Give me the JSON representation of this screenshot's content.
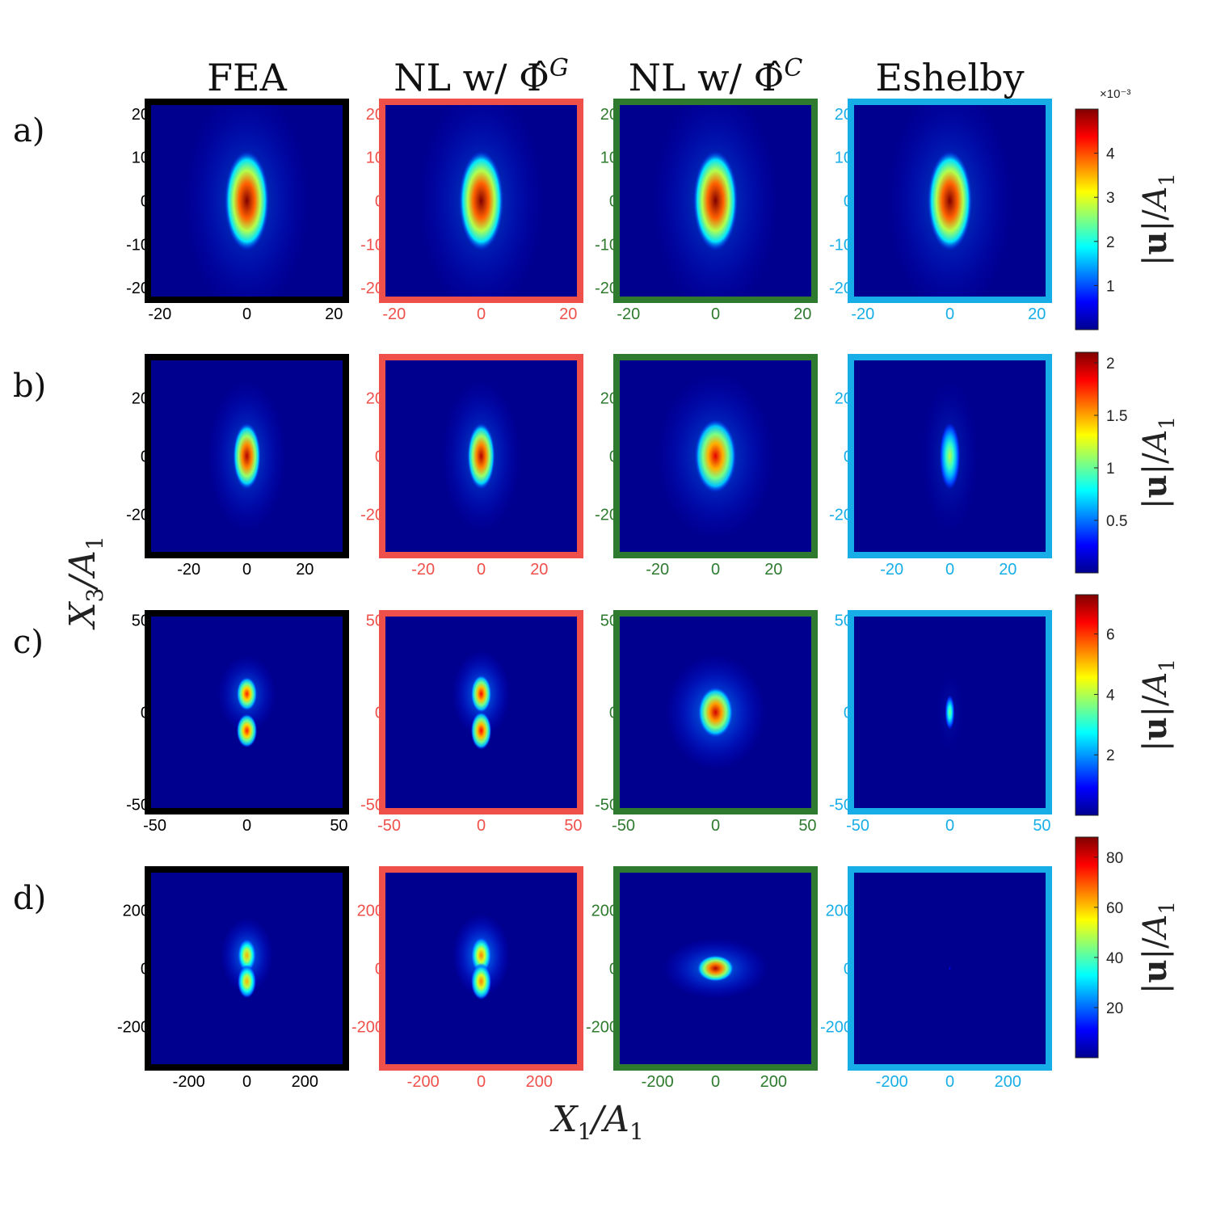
{
  "columns": [
    {
      "key": "fea",
      "title": "FEA",
      "color": "#000000"
    },
    {
      "key": "nlg",
      "title": "NL w/ Φ̂",
      "sup": "G",
      "color": "#f0504a"
    },
    {
      "key": "nlc",
      "title": "NL w/ Φ̂",
      "sup": "C",
      "color": "#2e7a2e"
    },
    {
      "key": "esh",
      "title": "Eshelby",
      "color": "#17aee8"
    }
  ],
  "x_axis_label": "X1/A1",
  "y_axis_label": "X3/A1",
  "colorbar_label": "|u|/A1",
  "chart_data": [
    {
      "type": "heatmap",
      "row_label": "a)",
      "xlim": [
        -22,
        22
      ],
      "ylim": [
        -22,
        22
      ],
      "xticks": [
        -20,
        0,
        20
      ],
      "yticks": [
        20,
        10,
        0,
        -10,
        -20
      ],
      "colorbar": {
        "ticks": [
          1,
          2,
          3,
          4
        ],
        "max": 5,
        "exponent_label": "×10⁻³"
      },
      "blobs": {
        "fea": [
          {
            "rx": 3.2,
            "ry": 10,
            "peak": 1,
            "bg": 0.07
          }
        ],
        "nlg": [
          {
            "rx": 3.2,
            "ry": 10,
            "peak": 1,
            "bg": 0.07
          }
        ],
        "nlc": [
          {
            "rx": 3.2,
            "ry": 10,
            "peak": 1,
            "bg": 0.07
          }
        ],
        "esh": [
          {
            "rx": 3.2,
            "ry": 10,
            "peak": 1,
            "bg": 0.07
          }
        ]
      }
    },
    {
      "type": "heatmap",
      "row_label": "b)",
      "xlim": [
        -33,
        33
      ],
      "ylim": [
        -33,
        33
      ],
      "xticks": [
        -20,
        0,
        20
      ],
      "yticks": [
        20,
        0,
        -20
      ],
      "colorbar": {
        "ticks": [
          0.5,
          1,
          1.5,
          2
        ],
        "max": 2.1
      },
      "blobs": {
        "fea": [
          {
            "rx": 3.0,
            "ry": 10,
            "peak": 0.95,
            "bg": 0.08
          }
        ],
        "nlg": [
          {
            "rx": 3.0,
            "ry": 10,
            "peak": 0.95,
            "bg": 0.08
          }
        ],
        "nlc": [
          {
            "rx": 4.5,
            "ry": 11,
            "peak": 0.9,
            "bg": 0.08
          }
        ],
        "esh": [
          {
            "rx": 2.2,
            "ry": 10,
            "peak": 0.55,
            "bg": 0.04
          }
        ]
      }
    },
    {
      "type": "heatmap",
      "row_label": "c)",
      "xlim": [
        -52,
        52
      ],
      "ylim": [
        -52,
        52
      ],
      "xticks": [
        -50,
        0,
        50
      ],
      "yticks": [
        50,
        0,
        -50
      ],
      "colorbar": {
        "ticks": [
          2,
          4,
          6
        ],
        "max": 7.3
      },
      "blobs": {
        "fea": [
          {
            "cy": 10,
            "rx": 3.5,
            "ry": 8,
            "peak": 0.85,
            "bg": 0.1
          },
          {
            "cy": -10,
            "rx": 3.5,
            "ry": 8,
            "peak": 0.85,
            "bg": 0
          }
        ],
        "nlg": [
          {
            "cy": 10,
            "rx": 3.5,
            "ry": 9,
            "peak": 0.88,
            "bg": 0.12
          },
          {
            "cy": -10,
            "rx": 3.5,
            "ry": 9,
            "peak": 0.88,
            "bg": 0
          }
        ],
        "nlc": [
          {
            "rx": 6,
            "ry": 12,
            "peak": 0.92,
            "bg": 0.12
          }
        ],
        "esh": [
          {
            "rx": 1.6,
            "ry": 8,
            "peak": 0.5,
            "bg": 0.02
          }
        ]
      }
    },
    {
      "type": "heatmap",
      "row_label": "d)",
      "xlim": [
        -330,
        330
      ],
      "ylim": [
        -330,
        330
      ],
      "xticks": [
        -200,
        0,
        200
      ],
      "yticks": [
        200,
        0,
        -200
      ],
      "colorbar": {
        "ticks": [
          20,
          40,
          60,
          80
        ],
        "max": 88
      },
      "blobs": {
        "fea": [
          {
            "cy": 45,
            "rx": 20,
            "ry": 50,
            "peak": 0.7,
            "bg": 0.12
          },
          {
            "cy": -45,
            "rx": 20,
            "ry": 50,
            "peak": 0.7,
            "bg": 0
          }
        ],
        "nlg": [
          {
            "cy": 45,
            "rx": 22,
            "ry": 55,
            "peak": 0.75,
            "bg": 0.14
          },
          {
            "cy": -45,
            "rx": 22,
            "ry": 55,
            "peak": 0.75,
            "bg": 0
          }
        ],
        "nlc": [
          {
            "rx": 40,
            "ry": 40,
            "peak": 0.95,
            "bg": 0.12
          }
        ],
        "esh": [
          {
            "rx": 2,
            "ry": 5,
            "peak": 0.15,
            "bg": 0
          }
        ]
      }
    }
  ]
}
